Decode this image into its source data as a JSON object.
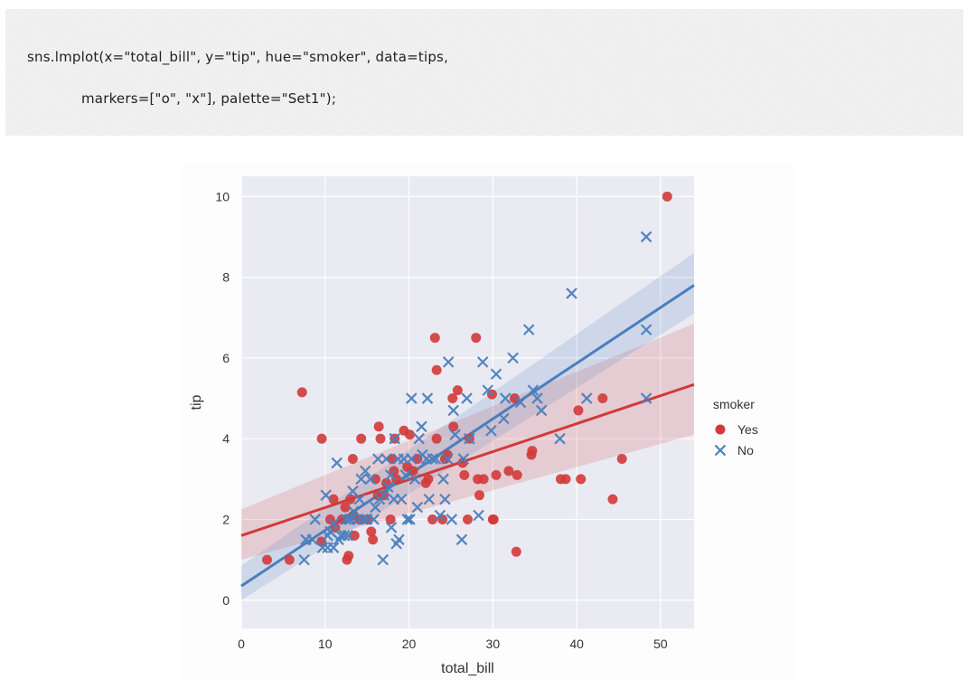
{
  "code": {
    "line1": "sns.lmplot(x=\"total_bill\", y=\"tip\", hue=\"smoker\", data=tips,",
    "line2": "markers=[\"o\", \"x\"], palette=\"Set1\");"
  },
  "chart_data": {
    "type": "scatter",
    "xlabel": "total_bill",
    "ylabel": "tip",
    "xlim": [
      0,
      54
    ],
    "ylim": [
      -0.7,
      10.5
    ],
    "xticks": [
      0,
      10,
      20,
      30,
      40,
      50
    ],
    "yticks": [
      0,
      2,
      4,
      6,
      8,
      10
    ],
    "grid": true,
    "legend": {
      "title": "smoker",
      "placement": "right"
    },
    "series": [
      {
        "name": "Yes",
        "marker": "o",
        "color": "#d23a3a",
        "fit_intercept": 1.6,
        "fit_slope": 0.0693,
        "ci_at_xmin": [
          1.0,
          2.25
        ],
        "ci_at_xmax": [
          4.1,
          6.85
        ],
        "points": [
          [
            3.07,
            1.0
          ],
          [
            5.75,
            1.0
          ],
          [
            7.25,
            5.15
          ],
          [
            9.55,
            1.45
          ],
          [
            9.6,
            4.0
          ],
          [
            10.6,
            2.0
          ],
          [
            11.0,
            2.5
          ],
          [
            11.2,
            1.8
          ],
          [
            12.0,
            2.0
          ],
          [
            12.4,
            2.3
          ],
          [
            12.6,
            1.0
          ],
          [
            12.8,
            1.1
          ],
          [
            13.0,
            2.5
          ],
          [
            13.3,
            3.5
          ],
          [
            13.4,
            2.1
          ],
          [
            13.5,
            1.6
          ],
          [
            14.1,
            2.0
          ],
          [
            14.3,
            4.0
          ],
          [
            15.0,
            2.0
          ],
          [
            15.5,
            1.7
          ],
          [
            15.7,
            1.5
          ],
          [
            16.0,
            3.0
          ],
          [
            16.3,
            2.6
          ],
          [
            16.4,
            4.3
          ],
          [
            16.6,
            4.0
          ],
          [
            17.0,
            2.6
          ],
          [
            17.3,
            2.9
          ],
          [
            17.8,
            2.0
          ],
          [
            18.0,
            3.5
          ],
          [
            18.2,
            3.2
          ],
          [
            18.3,
            4.0
          ],
          [
            18.5,
            3.0
          ],
          [
            19.4,
            4.2
          ],
          [
            19.8,
            3.3
          ],
          [
            20.1,
            4.1
          ],
          [
            20.5,
            3.2
          ],
          [
            21.0,
            3.5
          ],
          [
            22.0,
            2.9
          ],
          [
            22.3,
            3.0
          ],
          [
            22.8,
            2.0
          ],
          [
            23.1,
            6.5
          ],
          [
            23.3,
            5.7
          ],
          [
            23.3,
            4.0
          ],
          [
            24.0,
            2.0
          ],
          [
            24.3,
            3.5
          ],
          [
            24.6,
            3.6
          ],
          [
            25.2,
            5.0
          ],
          [
            25.3,
            4.3
          ],
          [
            25.8,
            5.2
          ],
          [
            26.4,
            3.4
          ],
          [
            26.6,
            3.1
          ],
          [
            27.0,
            2.0
          ],
          [
            27.2,
            4.0
          ],
          [
            28.0,
            6.5
          ],
          [
            28.2,
            3.0
          ],
          [
            28.4,
            2.6
          ],
          [
            28.9,
            3.0
          ],
          [
            29.9,
            5.1
          ],
          [
            30.0,
            2.0
          ],
          [
            30.1,
            2.0
          ],
          [
            30.4,
            3.1
          ],
          [
            31.9,
            3.2
          ],
          [
            32.6,
            5.0
          ],
          [
            32.8,
            1.2
          ],
          [
            32.9,
            3.1
          ],
          [
            34.6,
            3.6
          ],
          [
            34.7,
            3.7
          ],
          [
            38.1,
            3.0
          ],
          [
            38.7,
            3.0
          ],
          [
            40.2,
            4.7
          ],
          [
            40.5,
            3.0
          ],
          [
            43.1,
            5.0
          ],
          [
            44.3,
            2.5
          ],
          [
            45.4,
            3.5
          ],
          [
            50.8,
            10.0
          ]
        ]
      },
      {
        "name": "No",
        "marker": "x",
        "color": "#4a7fbd",
        "fit_intercept": 0.35,
        "fit_slope": 0.138,
        "ci_at_xmin": [
          0.0,
          0.85
        ],
        "ci_at_xmax": [
          7.1,
          8.6
        ],
        "points": [
          [
            7.5,
            1.0
          ],
          [
            7.7,
            1.5
          ],
          [
            8.5,
            1.5
          ],
          [
            8.8,
            2.0
          ],
          [
            9.7,
            1.3
          ],
          [
            10.1,
            2.6
          ],
          [
            10.3,
            1.6
          ],
          [
            10.6,
            1.7
          ],
          [
            10.3,
            1.3
          ],
          [
            11.0,
            1.9
          ],
          [
            11.0,
            1.3
          ],
          [
            11.4,
            3.4
          ],
          [
            11.6,
            1.5
          ],
          [
            11.9,
            1.6
          ],
          [
            12.3,
            1.6
          ],
          [
            12.5,
            2.0
          ],
          [
            12.7,
            1.6
          ],
          [
            12.9,
            2.0
          ],
          [
            13.0,
            2.0
          ],
          [
            13.3,
            2.7
          ],
          [
            13.4,
            2.2
          ],
          [
            13.8,
            2.0
          ],
          [
            14.1,
            2.5
          ],
          [
            14.3,
            3.0
          ],
          [
            14.5,
            2.0
          ],
          [
            14.8,
            3.2
          ],
          [
            15.0,
            2.0
          ],
          [
            15.4,
            3.0
          ],
          [
            15.8,
            2.0
          ],
          [
            16.0,
            2.3
          ],
          [
            16.3,
            3.5
          ],
          [
            16.5,
            2.5
          ],
          [
            16.9,
            1.0
          ],
          [
            17.0,
            2.6
          ],
          [
            17.3,
            3.5
          ],
          [
            17.5,
            2.8
          ],
          [
            17.8,
            3.1
          ],
          [
            17.9,
            1.8
          ],
          [
            18.2,
            2.5
          ],
          [
            18.3,
            4.0
          ],
          [
            18.5,
            1.4
          ],
          [
            18.7,
            3.5
          ],
          [
            18.8,
            1.5
          ],
          [
            19.1,
            2.5
          ],
          [
            19.4,
            3.5
          ],
          [
            19.6,
            3.1
          ],
          [
            19.8,
            2.0
          ],
          [
            20.1,
            2.0
          ],
          [
            20.3,
            3.5
          ],
          [
            20.3,
            5.0
          ],
          [
            20.7,
            3.0
          ],
          [
            21.0,
            2.3
          ],
          [
            21.2,
            4.0
          ],
          [
            21.5,
            4.3
          ],
          [
            21.6,
            3.6
          ],
          [
            22.1,
            3.5
          ],
          [
            22.2,
            5.0
          ],
          [
            22.4,
            2.5
          ],
          [
            22.8,
            3.5
          ],
          [
            23.2,
            3.5
          ],
          [
            23.7,
            2.1
          ],
          [
            24.1,
            3.0
          ],
          [
            24.3,
            2.5
          ],
          [
            24.6,
            3.5
          ],
          [
            24.7,
            5.9
          ],
          [
            25.1,
            2.0
          ],
          [
            25.3,
            4.7
          ],
          [
            25.5,
            4.1
          ],
          [
            26.3,
            1.5
          ],
          [
            26.5,
            3.5
          ],
          [
            26.9,
            5.0
          ],
          [
            27.2,
            4.0
          ],
          [
            28.3,
            2.1
          ],
          [
            28.8,
            5.9
          ],
          [
            29.4,
            5.2
          ],
          [
            29.8,
            4.2
          ],
          [
            30.4,
            5.6
          ],
          [
            31.3,
            4.5
          ],
          [
            31.5,
            5.0
          ],
          [
            32.4,
            6.0
          ],
          [
            33.3,
            4.9
          ],
          [
            34.3,
            6.7
          ],
          [
            34.8,
            5.2
          ],
          [
            35.3,
            5.0
          ],
          [
            35.8,
            4.7
          ],
          [
            38.0,
            4.0
          ],
          [
            39.4,
            7.6
          ],
          [
            41.2,
            5.0
          ],
          [
            48.3,
            9.0
          ],
          [
            48.3,
            6.7
          ],
          [
            48.3,
            5.0
          ]
        ]
      }
    ]
  }
}
